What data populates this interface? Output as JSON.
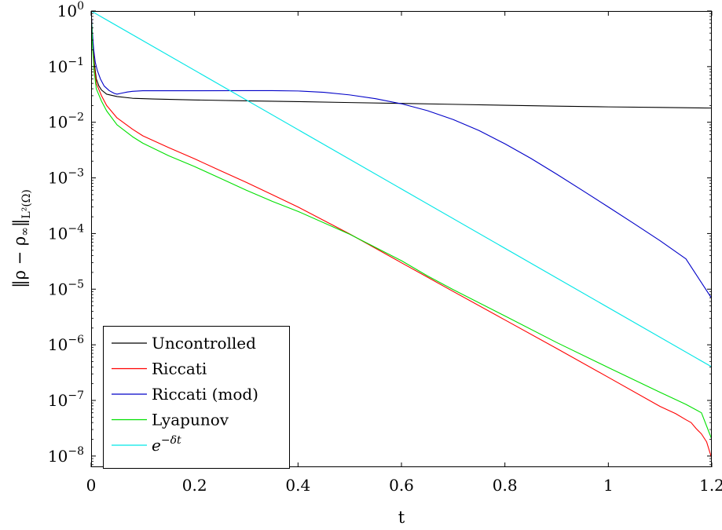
{
  "chart_data": {
    "type": "line",
    "title": "",
    "xlabel": "t",
    "ylabel": "‖ρ − ρ∞‖L²(Ω)",
    "xlim": [
      0,
      1.2
    ],
    "ylim_log10": [
      -8.2,
      0
    ],
    "yscale": "log",
    "grid": false,
    "legend_position": "bottom-left",
    "x_ticks": [
      {
        "value": 0,
        "label": "0"
      },
      {
        "value": 0.2,
        "label": "0.2"
      },
      {
        "value": 0.4,
        "label": "0.4"
      },
      {
        "value": 0.6,
        "label": "0.6"
      },
      {
        "value": 0.8,
        "label": "0.8"
      },
      {
        "value": 1.0,
        "label": "1"
      },
      {
        "value": 1.2,
        "label": "1.2"
      }
    ],
    "y_ticks": [
      {
        "exp": 0,
        "base": "10",
        "sup": "0"
      },
      {
        "exp": -1,
        "base": "10",
        "sup": "−1"
      },
      {
        "exp": -2,
        "base": "10",
        "sup": "−2"
      },
      {
        "exp": -3,
        "base": "10",
        "sup": "−3"
      },
      {
        "exp": -4,
        "base": "10",
        "sup": "−4"
      },
      {
        "exp": -5,
        "base": "10",
        "sup": "−5"
      },
      {
        "exp": -6,
        "base": "10",
        "sup": "−6"
      },
      {
        "exp": -7,
        "base": "10",
        "sup": "−7"
      },
      {
        "exp": -8,
        "base": "10",
        "sup": "−8"
      }
    ],
    "series": [
      {
        "name": "Uncontrolled",
        "color": "#000000",
        "points": [
          [
            0,
            1.0
          ],
          [
            0.003,
            0.3
          ],
          [
            0.006,
            0.12
          ],
          [
            0.01,
            0.06
          ],
          [
            0.015,
            0.045
          ],
          [
            0.02,
            0.038
          ],
          [
            0.03,
            0.032
          ],
          [
            0.05,
            0.029
          ],
          [
            0.08,
            0.027
          ],
          [
            0.12,
            0.0262
          ],
          [
            0.2,
            0.0252
          ],
          [
            0.3,
            0.0243
          ],
          [
            0.4,
            0.0235
          ],
          [
            0.5,
            0.0226
          ],
          [
            0.6,
            0.0218
          ],
          [
            0.7,
            0.021
          ],
          [
            0.8,
            0.0202
          ],
          [
            0.9,
            0.0195
          ],
          [
            1.0,
            0.0189
          ],
          [
            1.1,
            0.0185
          ],
          [
            1.2,
            0.018
          ]
        ]
      },
      {
        "name": "Riccati",
        "color": "#ff0000",
        "points": [
          [
            0,
            1.0
          ],
          [
            0.003,
            0.25
          ],
          [
            0.006,
            0.1
          ],
          [
            0.01,
            0.05
          ],
          [
            0.02,
            0.03
          ],
          [
            0.03,
            0.02
          ],
          [
            0.05,
            0.012
          ],
          [
            0.08,
            0.0075
          ],
          [
            0.1,
            0.0057
          ],
          [
            0.15,
            0.0035
          ],
          [
            0.2,
            0.0022
          ],
          [
            0.25,
            0.00135
          ],
          [
            0.3,
            0.00083
          ],
          [
            0.35,
            0.0005
          ],
          [
            0.4,
            0.0003
          ],
          [
            0.5,
            9.82e-05
          ],
          [
            0.6,
            2.98e-05
          ],
          [
            0.65,
            1.65e-05
          ],
          [
            0.7,
            9.1e-06
          ],
          [
            0.8,
            2.8e-06
          ],
          [
            0.9,
            8.6e-07
          ],
          [
            1.0,
            2.6e-07
          ],
          [
            1.1,
            7.8e-08
          ],
          [
            1.13,
            5.8e-08
          ],
          [
            1.15,
            4.5e-08
          ],
          [
            1.16,
            4e-08
          ],
          [
            1.17,
            3.1e-08
          ],
          [
            1.18,
            2.5e-08
          ],
          [
            1.19,
            1.8e-08
          ],
          [
            1.2,
            9e-09
          ]
        ]
      },
      {
        "name": "Riccati (mod)",
        "color": "#0000c8",
        "points": [
          [
            0,
            1.0
          ],
          [
            0.002,
            0.45
          ],
          [
            0.005,
            0.2
          ],
          [
            0.008,
            0.12
          ],
          [
            0.012,
            0.085
          ],
          [
            0.018,
            0.06
          ],
          [
            0.025,
            0.045
          ],
          [
            0.035,
            0.037
          ],
          [
            0.045,
            0.033
          ],
          [
            0.05,
            0.032
          ],
          [
            0.06,
            0.0335
          ],
          [
            0.07,
            0.035
          ],
          [
            0.08,
            0.036
          ],
          [
            0.1,
            0.0368
          ],
          [
            0.15,
            0.0368
          ],
          [
            0.2,
            0.0368
          ],
          [
            0.3,
            0.037
          ],
          [
            0.35,
            0.037
          ],
          [
            0.4,
            0.0365
          ],
          [
            0.45,
            0.0345
          ],
          [
            0.5,
            0.031
          ],
          [
            0.55,
            0.0265
          ],
          [
            0.6,
            0.0215
          ],
          [
            0.65,
            0.0162
          ],
          [
            0.7,
            0.0112
          ],
          [
            0.75,
            0.0071
          ],
          [
            0.8,
            0.0041
          ],
          [
            0.85,
            0.00225
          ],
          [
            0.9,
            0.00117
          ],
          [
            0.95,
            0.000595
          ],
          [
            1.0,
            0.0003
          ],
          [
            1.05,
            0.00015
          ],
          [
            1.1,
            7.42e-05
          ],
          [
            1.15,
            3.5e-05
          ],
          [
            1.2,
            6.8e-06
          ]
        ]
      },
      {
        "name": "Lyapunov",
        "color": "#00e000",
        "points": [
          [
            0,
            1.0
          ],
          [
            0.003,
            0.2
          ],
          [
            0.006,
            0.08
          ],
          [
            0.01,
            0.04
          ],
          [
            0.02,
            0.024
          ],
          [
            0.03,
            0.016
          ],
          [
            0.05,
            0.009
          ],
          [
            0.08,
            0.0055
          ],
          [
            0.1,
            0.0042
          ],
          [
            0.15,
            0.0025
          ],
          [
            0.2,
            0.0016
          ],
          [
            0.25,
            0.00098
          ],
          [
            0.3,
            0.0006
          ],
          [
            0.35,
            0.00038
          ],
          [
            0.4,
            0.00025
          ],
          [
            0.5,
            9.7e-05
          ],
          [
            0.6,
            3.25e-05
          ],
          [
            0.65,
            1.74e-05
          ],
          [
            0.7,
            9.8e-06
          ],
          [
            0.8,
            3.3e-06
          ],
          [
            0.9,
            1.1e-06
          ],
          [
            1.0,
            3.9e-07
          ],
          [
            1.1,
            1.4e-07
          ],
          [
            1.15,
            8.5e-08
          ],
          [
            1.18,
            6e-08
          ],
          [
            1.2,
            2e-08
          ]
        ]
      },
      {
        "name": "e^{−δt}",
        "color": "#00e6e6",
        "points": [
          [
            0,
            1.0
          ],
          [
            1.2,
            4e-07
          ]
        ]
      }
    ]
  }
}
